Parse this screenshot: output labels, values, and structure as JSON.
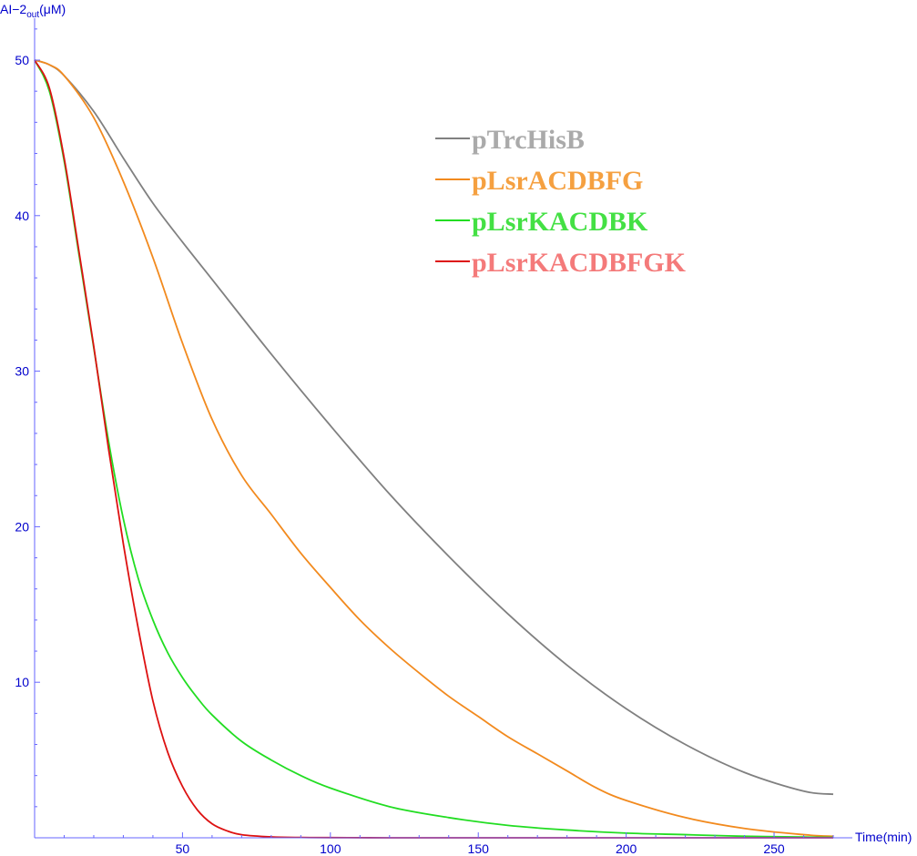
{
  "chart_data": {
    "type": "line",
    "xlabel": "Time(min)",
    "ylabel": {
      "main": "AI−2",
      "sub": "out",
      "unit": "(μM)"
    },
    "xlim": [
      0,
      275
    ],
    "ylim": [
      0,
      50
    ],
    "x_ticks": [
      50,
      100,
      150,
      200,
      250
    ],
    "y_ticks": [
      10,
      20,
      30,
      40,
      50
    ],
    "legend_position": "top-right",
    "series": [
      {
        "name": "pTrcHisB",
        "color": "#808080",
        "legend_color": "#aaaaaa",
        "x": [
          0,
          5,
          10,
          20,
          30,
          40,
          50,
          60,
          80,
          100,
          120,
          140,
          160,
          180,
          200,
          220,
          240,
          260,
          270
        ],
        "y": [
          50,
          49.7,
          49,
          46.7,
          43.7,
          40.8,
          38.3,
          35.9,
          31.1,
          26.5,
          22.1,
          18.1,
          14.4,
          11.1,
          8.3,
          6.0,
          4.2,
          3.0,
          2.8
        ]
      },
      {
        "name": "pLsrACDBFG",
        "color": "#f28a1e",
        "legend_color": "#f5a040",
        "x": [
          0,
          5,
          10,
          20,
          30,
          40,
          50,
          60,
          70,
          80,
          90,
          100,
          110,
          120,
          130,
          140,
          150,
          160,
          170,
          180,
          190,
          200,
          220,
          240,
          260,
          270
        ],
        "y": [
          50,
          49.7,
          49,
          46.3,
          42.2,
          37.3,
          31.8,
          26.9,
          23.3,
          20.8,
          18.3,
          16.1,
          14.0,
          12.2,
          10.6,
          9.1,
          7.8,
          6.5,
          5.4,
          4.3,
          3.2,
          2.4,
          1.3,
          0.6,
          0.2,
          0.1
        ]
      },
      {
        "name": "pLsrKACDBK",
        "color": "#22dd22",
        "legend_color": "#44e044",
        "x": [
          0,
          5,
          10,
          15,
          20,
          25,
          30,
          35,
          40,
          45,
          50,
          55,
          60,
          70,
          80,
          90,
          100,
          120,
          140,
          160,
          180,
          200,
          220,
          240,
          260,
          270
        ],
        "y": [
          50,
          48.0,
          43.5,
          37.5,
          31.5,
          25.5,
          20.5,
          16.7,
          14.0,
          11.9,
          10.3,
          9.0,
          7.9,
          6.2,
          5.0,
          4.0,
          3.2,
          2.0,
          1.3,
          0.8,
          0.5,
          0.3,
          0.2,
          0.1,
          0.05,
          0.03
        ]
      },
      {
        "name": "pLsrKACDBFGK",
        "color": "#dd1111",
        "legend_color": "#f47a7a",
        "x": [
          0,
          5,
          10,
          15,
          20,
          25,
          30,
          35,
          40,
          45,
          50,
          55,
          60,
          65,
          70,
          80,
          90,
          100,
          120,
          140,
          160,
          200,
          270
        ],
        "y": [
          50,
          48.2,
          43.7,
          37.7,
          31.6,
          25.0,
          18.9,
          13.5,
          8.8,
          5.5,
          3.3,
          1.8,
          0.9,
          0.45,
          0.2,
          0.06,
          0.02,
          0.01,
          0,
          0,
          0,
          0,
          0
        ]
      }
    ]
  }
}
